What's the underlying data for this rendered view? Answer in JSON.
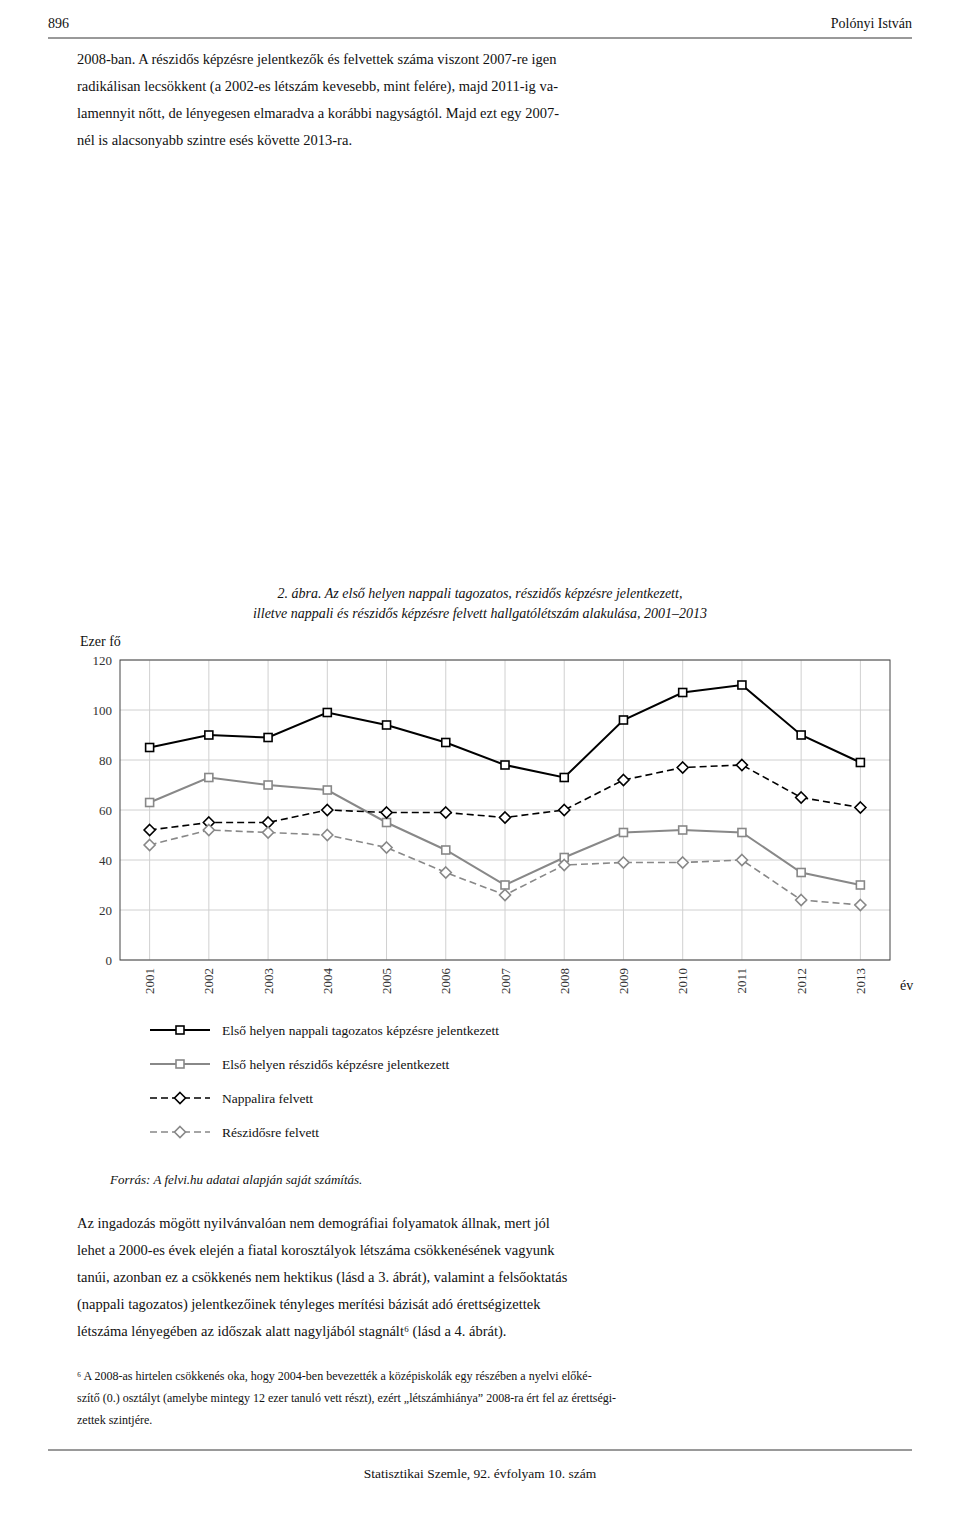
{
  "chart_data": {
    "type": "line",
    "title": "2. ábra. Az első helyen nappali tagozatos, részidős képzésre jelentkezett,",
    "subtitle": "illetve nappali és részidős képzésre felvett hallgatólétszám alakulása, 2001–2013",
    "x_label": "év",
    "y_label": "Ezer fő",
    "x": [
      2001,
      2002,
      2003,
      2004,
      2005,
      2006,
      2007,
      2008,
      2009,
      2010,
      2011,
      2012,
      2013
    ],
    "xlim": [
      2000.5,
      2013.5
    ],
    "xticks": [
      2001,
      2002,
      2003,
      2004,
      2005,
      2006,
      2007,
      2008,
      2009,
      2010,
      2011,
      2012,
      2013
    ],
    "ylim": [
      0,
      120
    ],
    "yticks": [
      0,
      20,
      40,
      60,
      80,
      100,
      120
    ],
    "grid": true,
    "legend": "bottom",
    "series": [
      {
        "name": "Első helyen nappali tagozatos képzésre jelentkezett",
        "color": "#000000",
        "marker": "square",
        "line_style": "solid",
        "values": [
          85,
          90,
          89,
          99,
          94,
          87,
          78,
          73,
          96,
          107,
          110,
          90,
          79
        ]
      },
      {
        "name": "Első helyen részidős képzésre jelentkezett",
        "color": "#888888",
        "marker": "square",
        "line_style": "solid",
        "values": [
          63,
          73,
          70,
          68,
          55,
          44,
          30,
          41,
          51,
          52,
          51,
          35,
          30
        ]
      },
      {
        "name": "Nappalira felvett",
        "color": "#000000",
        "marker": "diamond",
        "line_style": "dashed",
        "values": [
          52,
          55,
          55,
          60,
          59,
          59,
          57,
          60,
          72,
          77,
          78,
          65,
          61
        ]
      },
      {
        "name": "Részidősre felvett",
        "color": "#888888",
        "marker": "diamond",
        "line_style": "dashed",
        "values": [
          46,
          52,
          51,
          50,
          45,
          35,
          26,
          38,
          39,
          39,
          40,
          24,
          22
        ]
      }
    ],
    "annotations": [
      "896",
      "Polónyi István",
      "2008-ban. A részidős képzésre jelentkezők és felvettek száma viszont 2007-re igen",
      "radikálisan lecsökkent (a 2002-es létszám kevesebb, mint felére), majd 2011-ig va-",
      "lamennyit nőtt, de lényegesen elmaradva a korábbi nagyságtól. Majd ezt egy 2007-",
      "nél is alacsonyabb szintre esés követte 2013-ra.",
      "Forrás: A felvi.hu adatai alapján saját számítás.",
      "Az ingadozás mögött nyilvánvalóan nem demográfiai folyamatok állnak, mert jól",
      "lehet a 2000-es évek elején a fiatal korosztályok létszáma csökkenésének vagyunk",
      "tanúi, azonban ez a csökkenés nem hektikus (lásd a 3. ábrát), valamint a felsőoktatás",
      "(nappali tagozatos) jelentkezőinek tényleges merítési bázisát adó érettségizettek",
      "létszáma lényegében az időszak alatt nagyljából stagnált⁶ (lásd a 4. ábrát).",
      "⁶ A 2008-as hirtelen csökkenés oka, hogy 2004-ben bevezették a középiskolák egy részében a nyelvi előké-",
      "szítő (0.) osztályt (amelybe mintegy 12 ezer tanuló vett részt), ezért „létszámhiánya” 2008-ra ért fel az érettségi-",
      "zettek szintjére.",
      "Statisztikai Szemle, 92. évfolyam 10. szám"
    ]
  }
}
